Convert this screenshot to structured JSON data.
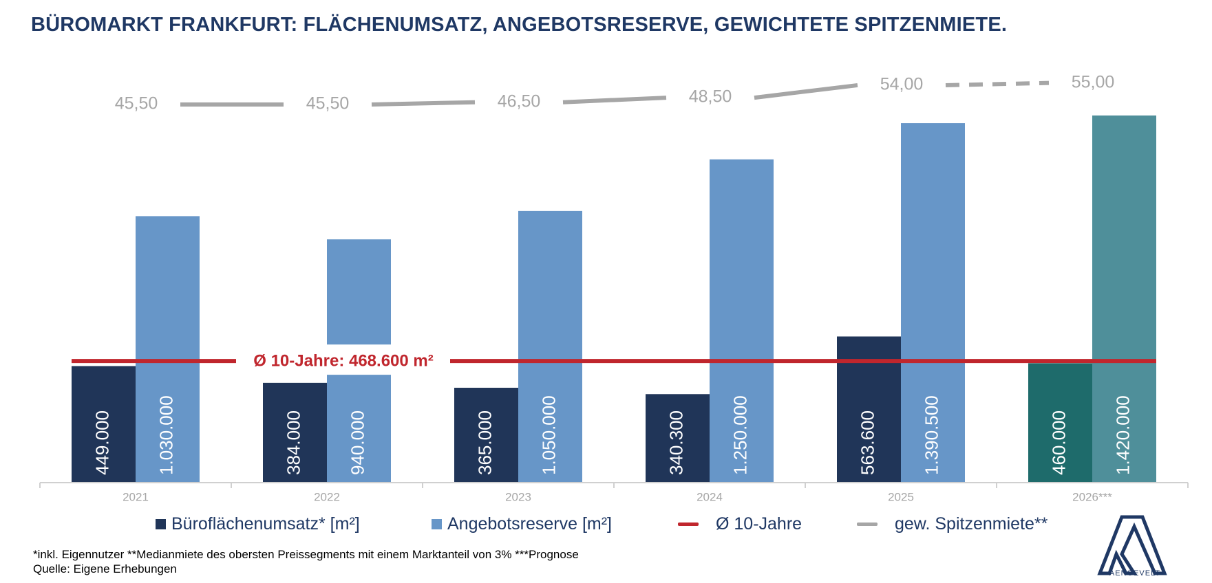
{
  "title": "BÜROMARKT FRANKFURT: FLÄCHENUMSATZ, ANGEBOTSRESERVE, GEWICHTETE SPITZENMIETE.",
  "chart_data": {
    "type": "bar",
    "categories": [
      "2021",
      "2022",
      "2023",
      "2024",
      "2025",
      "2026***"
    ],
    "series": [
      {
        "name": "Büroflächenumsatz* [m²]",
        "values": [
          449000,
          384000,
          365000,
          340300,
          563600,
          460000
        ],
        "labels": [
          "449.000",
          "384.000",
          "365.000",
          "340.300",
          "563.600",
          "460.000"
        ],
        "colors": [
          "#203558",
          "#203558",
          "#203558",
          "#203558",
          "#203558",
          "#1e6b6b"
        ]
      },
      {
        "name": "Angebotsreserve [m²]",
        "values": [
          1030000,
          940000,
          1050000,
          1250000,
          1390500,
          1420000
        ],
        "labels": [
          "1.030.000",
          "940.000",
          "1.050.000",
          "1.250.000",
          "1.390.500",
          "1.420.000"
        ],
        "colors": [
          "#6796c8",
          "#6796c8",
          "#6796c8",
          "#6796c8",
          "#6796c8",
          "#4f8f9a"
        ]
      }
    ],
    "average": {
      "name": "Ø 10-Jahre",
      "value": 468600,
      "label": "Ø 10-Jahre: 468.600 m²",
      "color": "#c0262d"
    },
    "rent": {
      "name": "gew. Spitzenmiete**",
      "values": [
        45.5,
        45.5,
        46.5,
        48.5,
        54.0,
        55.0
      ],
      "labels": [
        "45,50",
        "45,50",
        "46,50",
        "48,50",
        "54,00",
        "55,00"
      ],
      "forecast_from_index": 4,
      "color": "#a6a6a6"
    },
    "ylim": [
      0,
      1420000
    ],
    "grid": false,
    "legend_position": "bottom"
  },
  "legend": {
    "umsatz": "Büroflächenumsatz* [m²]",
    "reserve": "Angebotsreserve [m²]",
    "avg": "Ø 10-Jahre",
    "rent": "gew. Spitzenmiete**"
  },
  "footnotes": {
    "line1": "*inkl. Eigennutzer **Medianmiete des obersten Preissegments mit einem Marktanteil von 3% ***Prognose",
    "line2": "Quelle: Eigene Erhebungen"
  },
  "logo": {
    "text": "AENGEVELT"
  },
  "colors": {
    "title": "#1f3864",
    "umsatz": "#203558",
    "reserve": "#6796c8",
    "avg": "#c0262d",
    "rent": "#a6a6a6"
  }
}
